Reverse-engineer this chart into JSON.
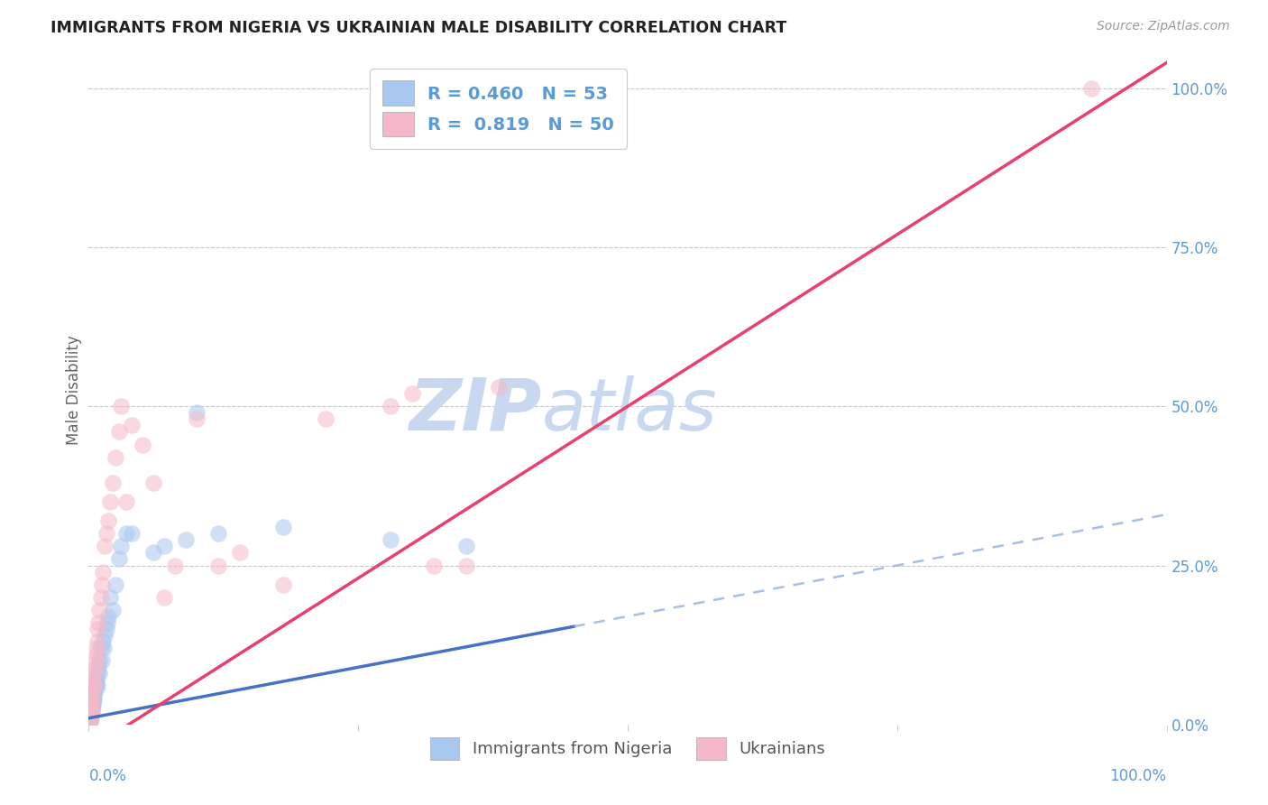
{
  "title": "IMMIGRANTS FROM NIGERIA VS UKRAINIAN MALE DISABILITY CORRELATION CHART",
  "source": "Source: ZipAtlas.com",
  "ylabel": "Male Disability",
  "nigeria_color": "#A8C8F0",
  "ukraine_color": "#F5B8C8",
  "nigeria_line_color": "#4472C4",
  "ukraine_line_color": "#E84070",
  "nigeria_line_dash_color": "#8AAAD8",
  "watermark_zip": "ZIP",
  "watermark_atlas": "atlas",
  "watermark_color": "#C8D8F0",
  "background_color": "#FFFFFF",
  "grid_color": "#BBBBBB",
  "axis_color": "#5B9BD5",
  "title_color": "#222222",
  "source_color": "#999999",
  "legend_R1": "R = 0.460",
  "legend_N1": "N = 53",
  "legend_R2": "R =  0.819",
  "legend_N2": "N = 50",
  "nigeria_slope": 0.32,
  "nigeria_intercept": 0.01,
  "ukraine_slope": 1.08,
  "ukraine_intercept": -0.04,
  "nigeria_x": [
    0.001,
    0.001,
    0.001,
    0.001,
    0.001,
    0.002,
    0.002,
    0.002,
    0.002,
    0.002,
    0.002,
    0.003,
    0.003,
    0.003,
    0.003,
    0.004,
    0.004,
    0.004,
    0.005,
    0.005,
    0.005,
    0.006,
    0.006,
    0.007,
    0.007,
    0.008,
    0.008,
    0.009,
    0.01,
    0.01,
    0.011,
    0.012,
    0.013,
    0.014,
    0.015,
    0.016,
    0.017,
    0.018,
    0.02,
    0.022,
    0.025,
    0.028,
    0.03,
    0.035,
    0.04,
    0.06,
    0.07,
    0.09,
    0.1,
    0.12,
    0.18,
    0.28,
    0.35
  ],
  "nigeria_y": [
    0.01,
    0.02,
    0.025,
    0.015,
    0.005,
    0.02,
    0.03,
    0.015,
    0.025,
    0.01,
    0.035,
    0.02,
    0.04,
    0.03,
    0.025,
    0.04,
    0.035,
    0.03,
    0.05,
    0.045,
    0.04,
    0.055,
    0.06,
    0.07,
    0.065,
    0.08,
    0.06,
    0.09,
    0.1,
    0.08,
    0.12,
    0.1,
    0.13,
    0.12,
    0.14,
    0.15,
    0.16,
    0.17,
    0.2,
    0.18,
    0.22,
    0.26,
    0.28,
    0.3,
    0.3,
    0.27,
    0.28,
    0.29,
    0.49,
    0.3,
    0.31,
    0.29,
    0.28
  ],
  "ukraine_x": [
    0.001,
    0.001,
    0.001,
    0.002,
    0.002,
    0.002,
    0.002,
    0.003,
    0.003,
    0.003,
    0.004,
    0.004,
    0.005,
    0.005,
    0.006,
    0.006,
    0.007,
    0.007,
    0.008,
    0.008,
    0.009,
    0.01,
    0.011,
    0.012,
    0.013,
    0.015,
    0.016,
    0.018,
    0.02,
    0.022,
    0.025,
    0.028,
    0.03,
    0.035,
    0.04,
    0.05,
    0.06,
    0.07,
    0.08,
    0.1,
    0.12,
    0.14,
    0.18,
    0.22,
    0.28,
    0.3,
    0.32,
    0.35,
    0.38,
    0.93
  ],
  "ukraine_y": [
    0.005,
    0.02,
    0.01,
    0.02,
    0.04,
    0.03,
    0.015,
    0.05,
    0.035,
    0.025,
    0.06,
    0.07,
    0.08,
    0.06,
    0.09,
    0.1,
    0.12,
    0.11,
    0.13,
    0.15,
    0.16,
    0.18,
    0.2,
    0.22,
    0.24,
    0.28,
    0.3,
    0.32,
    0.35,
    0.38,
    0.42,
    0.46,
    0.5,
    0.35,
    0.47,
    0.44,
    0.38,
    0.2,
    0.25,
    0.48,
    0.25,
    0.27,
    0.22,
    0.48,
    0.5,
    0.52,
    0.25,
    0.25,
    0.53,
    1.0
  ],
  "xlim": [
    0.0,
    1.0
  ],
  "ylim": [
    0.0,
    1.05
  ],
  "yticks": [
    0.0,
    0.25,
    0.5,
    0.75,
    1.0
  ],
  "ytick_labels": [
    "0.0%",
    "25.0%",
    "50.0%",
    "75.0%",
    "100.0%"
  ],
  "xtick_labels_show": [
    "0.0%",
    "100.0%"
  ],
  "nigeria_line_xmax": 0.45,
  "scatter_size": 180,
  "scatter_alpha": 0.55
}
